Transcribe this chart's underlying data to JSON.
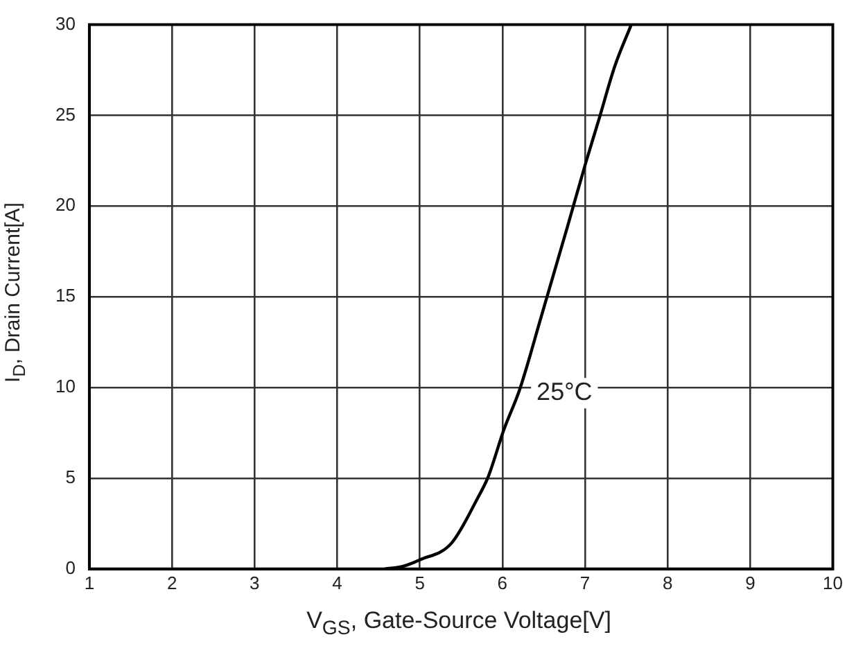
{
  "chart_data": {
    "type": "line",
    "xlabel": "V$_{GS}$, Gate-Source Voltage[V]",
    "ylabel": "I$_{D}$, Drain Current[A]",
    "xlim": [
      1,
      10
    ],
    "xticks": [
      1,
      2,
      3,
      4,
      5,
      6,
      7,
      8,
      9,
      10
    ],
    "ylim": [
      0,
      30
    ],
    "yticks": [
      0,
      5,
      10,
      15,
      20,
      25,
      30
    ],
    "grid": true,
    "legend": false,
    "marker": "none",
    "line_style": "solid",
    "series": [
      {
        "color": "#000000",
        "x": [
          4.58,
          4.8,
          5.0,
          5.38,
          5.7,
          5.83,
          6.02,
          6.21,
          6.47,
          6.79,
          7.01,
          7.17,
          7.36,
          7.56
        ],
        "values": [
          0,
          0.15,
          0.5,
          1.4,
          3.9,
          5.1,
          7.7,
          9.9,
          13.9,
          18.9,
          22.4,
          24.8,
          27.7,
          30
        ]
      }
    ],
    "annotations": [
      "25°C"
    ]
  }
}
